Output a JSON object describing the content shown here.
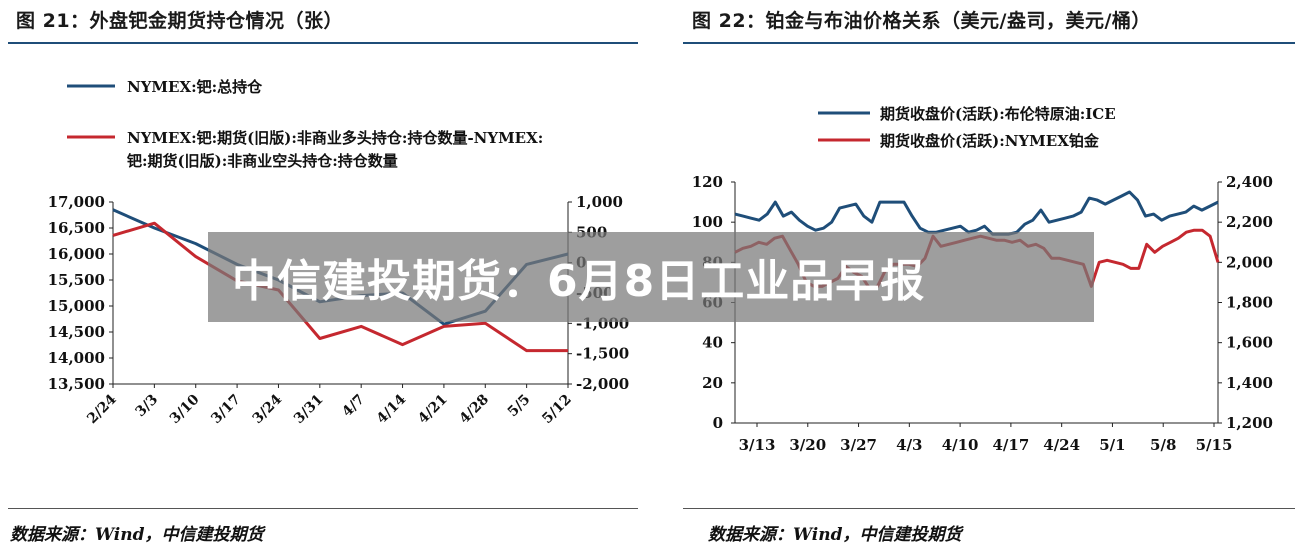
{
  "left": {
    "title": "图 21：外盘钯金期货持仓情况（张）",
    "source": "数据来源：Wind，中信建投期货"
  },
  "right": {
    "title": "图 22：铂金与布油价格关系（美元/盎司，美元/桶）",
    "source": "数据来源：Wind，中信建投期货"
  },
  "overlay": {
    "text": "中信建投期货：6月8日工业品早报"
  },
  "colors": {
    "blue": "#1f4e79",
    "red": "#c5282f",
    "rule": "#1f4e79",
    "overlay": "#787878"
  },
  "chart_data": [
    {
      "type": "line",
      "x": [
        "2/24",
        "3/3",
        "3/10",
        "3/17",
        "3/24",
        "3/31",
        "4/7",
        "4/14",
        "4/21",
        "4/28",
        "5/5",
        "5/12"
      ],
      "left_axis": {
        "ticks": [
          "17,000",
          "16,500",
          "16,000",
          "15,500",
          "15,000",
          "14,500",
          "14,000",
          "13,500"
        ],
        "ylim": [
          13500,
          17000
        ]
      },
      "right_axis": {
        "ticks": [
          "1,000",
          "500",
          "0",
          "-500",
          "-1,000",
          "-1,500",
          "-2,000"
        ],
        "ylim": [
          -2000,
          1000
        ]
      },
      "series": [
        {
          "name": "NYMEX:钯:总持仓",
          "axis": "left",
          "color": "#1f4e79",
          "values": [
            16850,
            16500,
            16200,
            15800,
            15500,
            15080,
            15200,
            15250,
            14650,
            14900,
            15800,
            16000
          ]
        },
        {
          "name": "NYMEX:钯:期货(旧版):非商业多头持仓:持仓数量-NYMEX:钯:期货(旧版):非商业空头持仓:持仓数量",
          "axis": "right",
          "color": "#c5282f",
          "values": [
            450,
            650,
            100,
            -300,
            -450,
            -1250,
            -1050,
            -1350,
            -1050,
            -1000,
            -1450,
            -1450
          ]
        }
      ],
      "legend": [
        "NYMEX:钯:总持仓",
        "NYMEX:钯:期货(旧版):非商业多头持仓:持仓数量-NYMEX:",
        "钯:期货(旧版):非商业空头持仓:持仓数量"
      ]
    },
    {
      "type": "line",
      "x_ticks": [
        "3/13",
        "3/20",
        "3/27",
        "4/3",
        "4/10",
        "4/17",
        "4/24",
        "5/1",
        "5/8",
        "5/15"
      ],
      "left_axis": {
        "ticks": [
          "120",
          "100",
          "80",
          "60",
          "40",
          "20",
          "0"
        ],
        "ylim": [
          0,
          120
        ]
      },
      "right_axis": {
        "ticks": [
          "2,400",
          "2,200",
          "2,000",
          "1,800",
          "1,600",
          "1,400",
          "1,200"
        ],
        "ylim": [
          1200,
          2400
        ]
      },
      "series": [
        {
          "name": "期货收盘价(活跃):布伦特原油:ICE",
          "axis": "left",
          "color": "#1f4e79",
          "values": [
            104,
            103,
            102,
            101,
            104,
            110,
            103,
            105,
            101,
            98,
            96,
            97,
            100,
            107,
            108,
            109,
            103,
            100,
            110,
            110,
            110,
            110,
            103,
            97,
            95,
            95,
            96,
            97,
            98,
            95,
            96,
            98,
            94,
            94,
            94,
            95,
            99,
            101,
            106,
            100,
            101,
            102,
            103,
            105,
            112,
            111,
            109,
            111,
            113,
            115,
            111,
            103,
            104,
            101,
            103,
            104,
            105,
            108,
            106,
            108,
            110
          ]
        },
        {
          "name": "期货收盘价(活跃):NYMEX铂金",
          "axis": "right",
          "color": "#c5282f",
          "values": [
            2050,
            2070,
            2080,
            2100,
            2090,
            2120,
            2130,
            2060,
            1990,
            1900,
            1880,
            1880,
            1900,
            1920,
            1980,
            1950,
            1930,
            1870,
            1880,
            1960,
            1990,
            1990,
            1990,
            1980,
            2020,
            2130,
            2080,
            2090,
            2100,
            2110,
            2120,
            2130,
            2120,
            2110,
            2110,
            2100,
            2110,
            2080,
            2090,
            2070,
            2020,
            2020,
            2010,
            2000,
            1990,
            1880,
            2000,
            2010,
            2000,
            1990,
            1970,
            1970,
            2090,
            2050,
            2080,
            2100,
            2120,
            2150,
            2160,
            2160,
            2130,
            2000
          ]
        }
      ],
      "legend": [
        "期货收盘价(活跃):布伦特原油:ICE",
        "期货收盘价(活跃):NYMEX铂金"
      ]
    }
  ]
}
